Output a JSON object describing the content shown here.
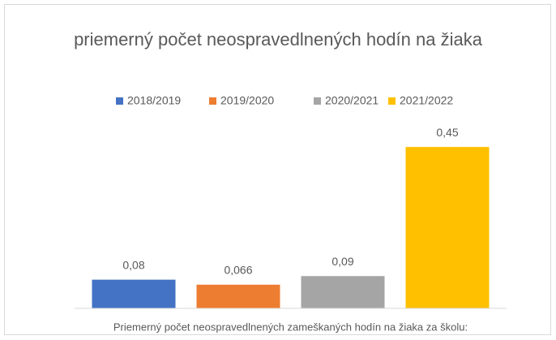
{
  "chart_data": {
    "type": "bar",
    "title": "priemerný počet neospravedlnených hodín na žiaka",
    "categories": [
      "Priemerný počet neospravedlnených zameškaných hodín na žiaka za školu:"
    ],
    "series": [
      {
        "name": "2018/2019",
        "color": "#4472c4",
        "values": [
          0.08
        ],
        "value_labels": [
          "0,08"
        ]
      },
      {
        "name": "2019/2020",
        "color": "#ed7d31",
        "values": [
          0.066
        ],
        "value_labels": [
          "0,066"
        ]
      },
      {
        "name": "2020/2021",
        "color": "#a5a5a5",
        "values": [
          0.09
        ],
        "value_labels": [
          "0,09"
        ]
      },
      {
        "name": "2021/2022",
        "color": "#ffc000",
        "values": [
          0.45
        ],
        "value_labels": [
          "0,45"
        ]
      }
    ],
    "ylim": [
      0,
      0.5
    ],
    "legend": "top"
  }
}
